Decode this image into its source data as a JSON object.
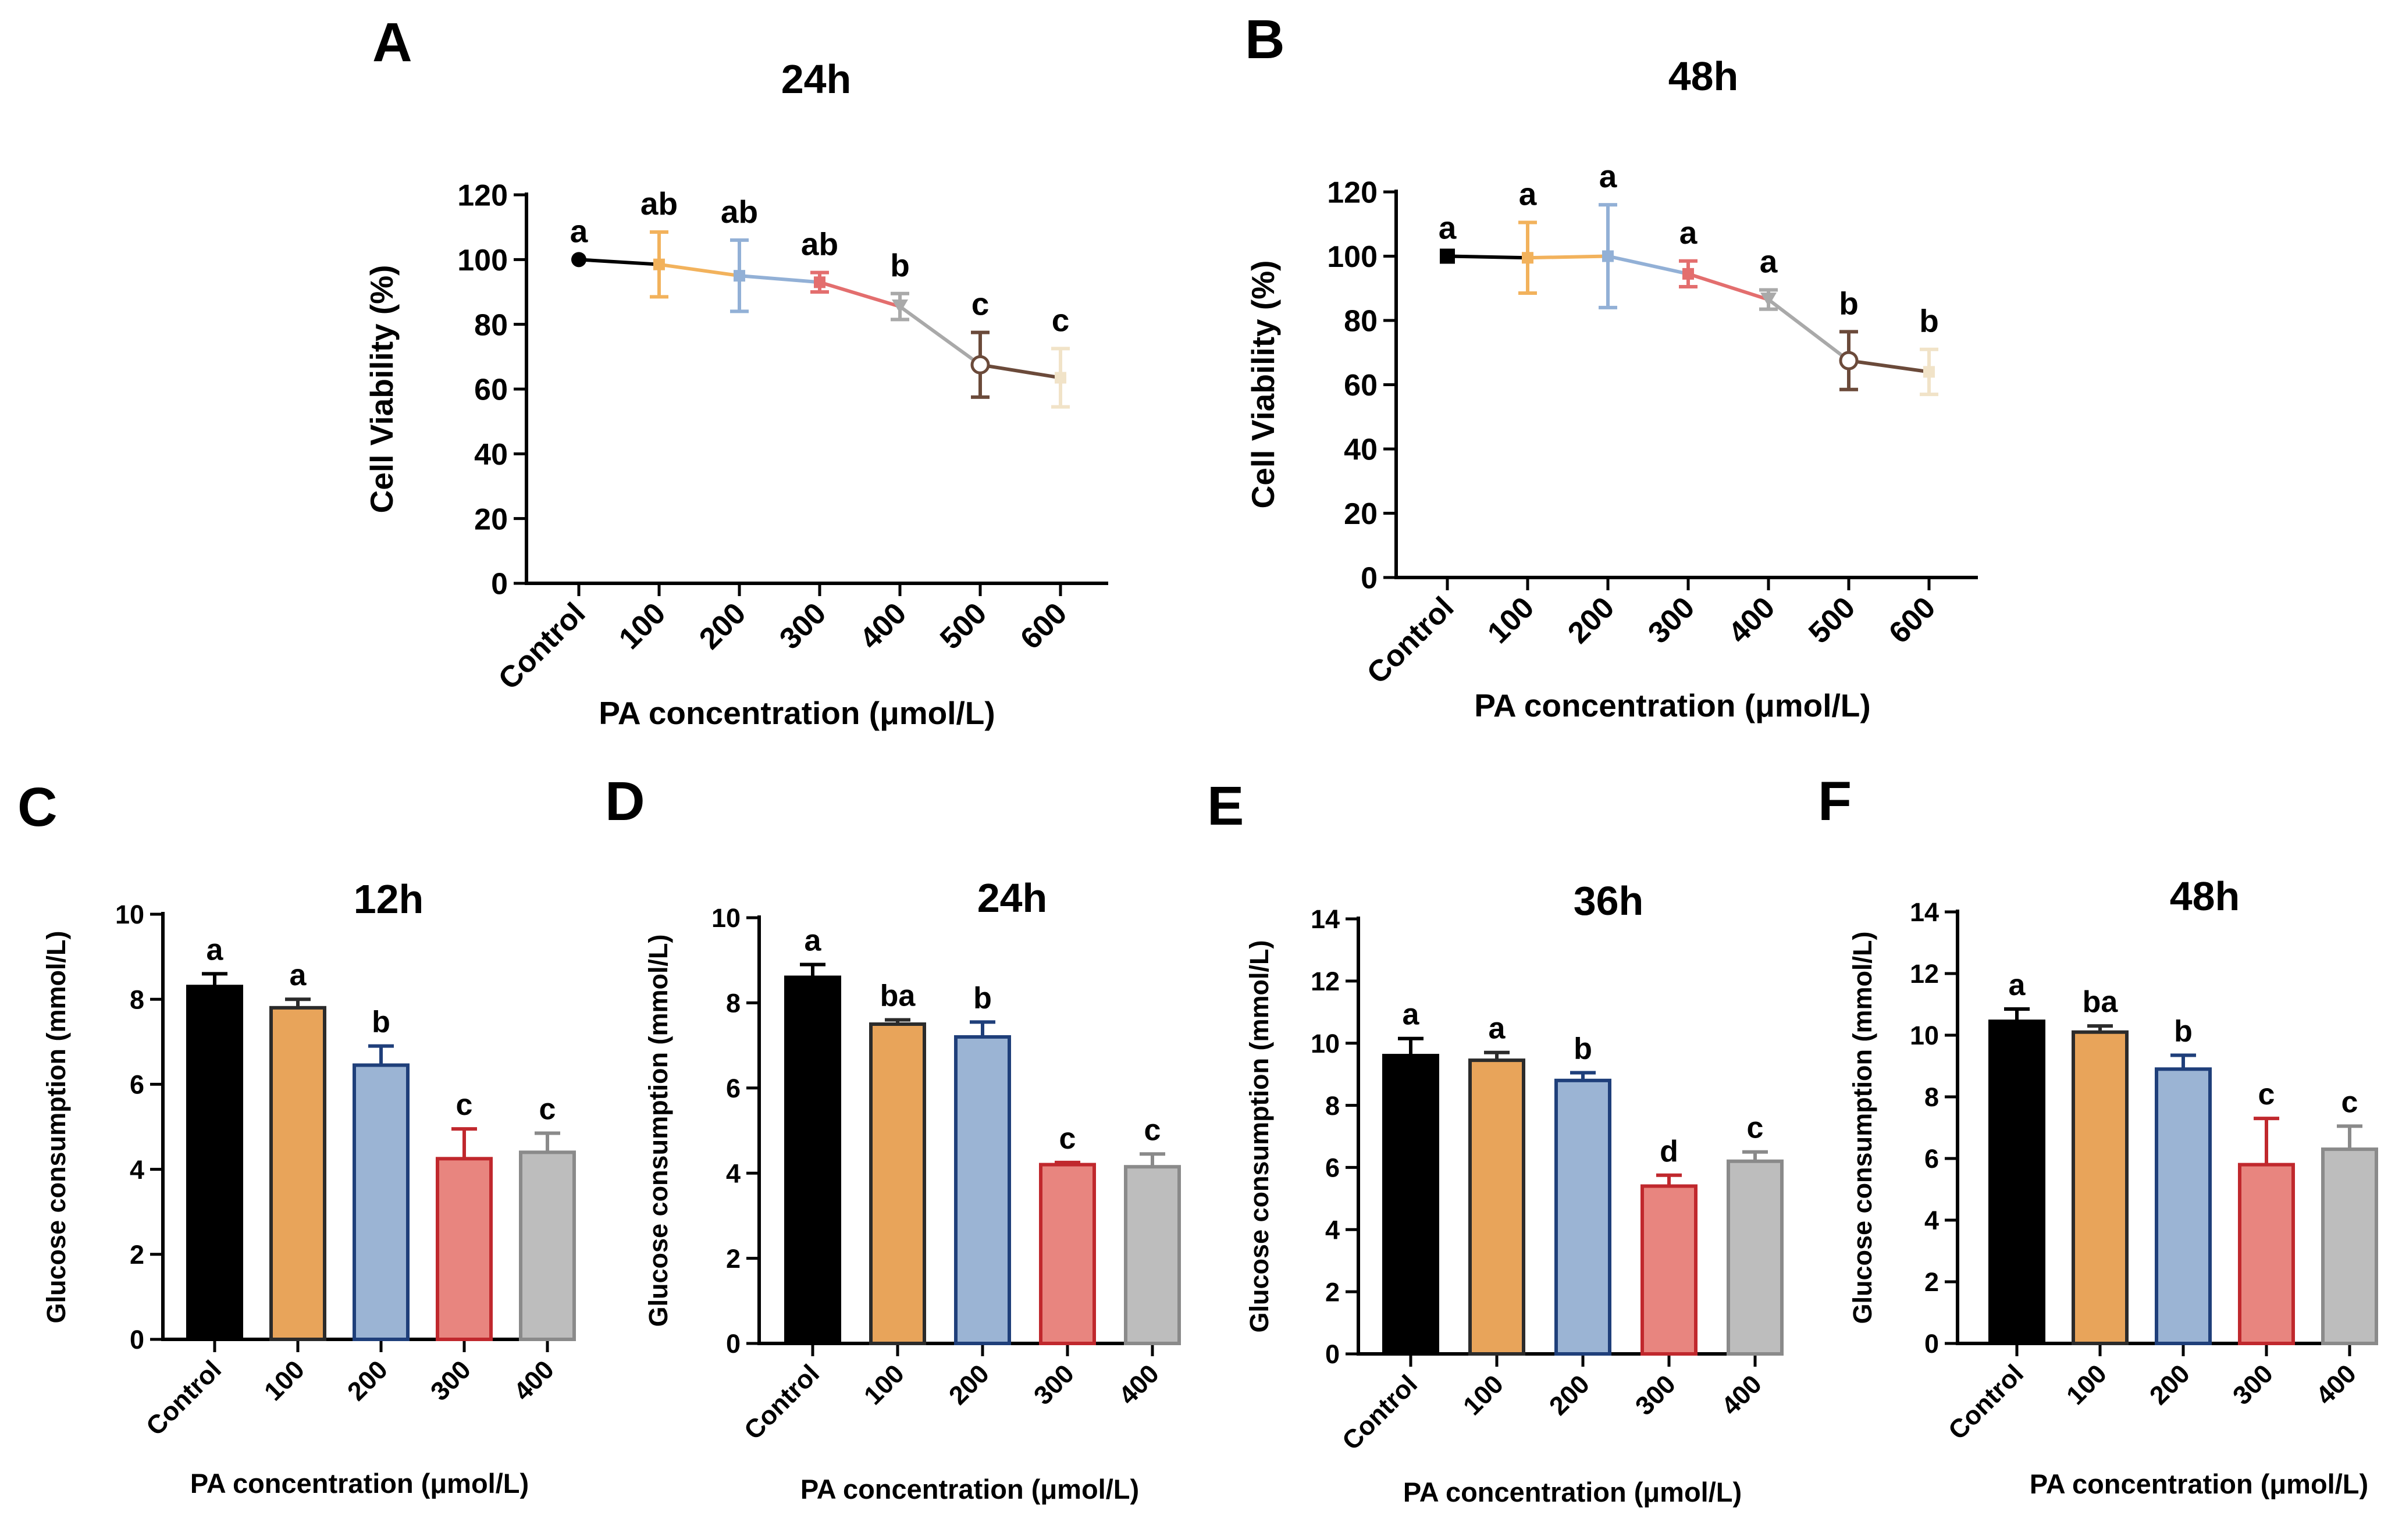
{
  "chart_data": [
    {
      "panel": "A",
      "type": "line",
      "title": "24h",
      "xlabel": "PA  concentration (μmol/L)",
      "ylabel": "Cell Viability (%)",
      "categories": [
        "Control",
        "100",
        "200",
        "300",
        "400",
        "500",
        "600"
      ],
      "values": [
        100,
        98.5,
        95,
        93,
        85.5,
        67.5,
        63.5
      ],
      "errors": [
        0,
        10,
        11,
        3,
        4,
        10,
        9
      ],
      "significance": [
        "a",
        "ab",
        "ab",
        "ab",
        "b",
        "c",
        "c"
      ],
      "colors": [
        "#000000",
        "#F2B25C",
        "#92B0D6",
        "#E36E6E",
        "#A9A9A9",
        "#6B4A3A",
        "#F1E3C8"
      ],
      "ylim": [
        0,
        120
      ],
      "yticks": [
        0,
        20,
        40,
        60,
        80,
        100,
        120
      ]
    },
    {
      "panel": "B",
      "type": "line",
      "title": "48h",
      "xlabel": "PA  concentration (μmol/L)",
      "ylabel": "Cell Viability (%)",
      "categories": [
        "Control",
        "100",
        "200",
        "300",
        "400",
        "500",
        "600"
      ],
      "values": [
        100,
        99.5,
        100,
        94.5,
        86.5,
        67.5,
        64
      ],
      "errors": [
        0,
        11,
        16,
        4,
        3,
        9,
        7
      ],
      "significance": [
        "a",
        "a",
        "a",
        "a",
        "a",
        "b",
        "b"
      ],
      "colors": [
        "#000000",
        "#F2B25C",
        "#92B0D6",
        "#E36E6E",
        "#A9A9A9",
        "#6B4A3A",
        "#F1E3C8"
      ],
      "ylim": [
        0,
        120
      ],
      "yticks": [
        0,
        20,
        40,
        60,
        80,
        100,
        120
      ]
    },
    {
      "panel": "C",
      "type": "bar",
      "title": "12h",
      "xlabel": "PA concentration (μmol/L)",
      "ylabel": "Glucose consumption (mmol/L)",
      "categories": [
        "Control",
        "100",
        "200",
        "300",
        "400"
      ],
      "values": [
        8.3,
        7.8,
        6.45,
        4.25,
        4.4
      ],
      "errors": [
        0.3,
        0.2,
        0.45,
        0.7,
        0.45
      ],
      "significance": [
        "a",
        "a",
        "b",
        "c",
        "c"
      ],
      "fills": [
        "#000000",
        "#E8A45A",
        "#9BB4D4",
        "#E8857F",
        "#BDBDBD"
      ],
      "strokes": [
        "#000000",
        "#2B2B2B",
        "#1F3F7A",
        "#C0282D",
        "#8A8A8A"
      ],
      "ylim": [
        0,
        10
      ],
      "yticks": [
        0,
        2,
        4,
        6,
        8,
        10
      ]
    },
    {
      "panel": "D",
      "type": "bar",
      "title": "24h",
      "xlabel": "PA concentration (μmol/L)",
      "ylabel": "Glucose consumption (mmol/L)",
      "categories": [
        "Control",
        "100",
        "200",
        "300",
        "400"
      ],
      "values": [
        8.6,
        7.5,
        7.2,
        4.2,
        4.15
      ],
      "errors": [
        0.3,
        0.1,
        0.35,
        0.05,
        0.3
      ],
      "significance": [
        "a",
        "ba",
        "b",
        "c",
        "c"
      ],
      "fills": [
        "#000000",
        "#E8A45A",
        "#9BB4D4",
        "#E8857F",
        "#BDBDBD"
      ],
      "strokes": [
        "#000000",
        "#2B2B2B",
        "#1F3F7A",
        "#C0282D",
        "#8A8A8A"
      ],
      "ylim": [
        0,
        10
      ],
      "yticks": [
        0,
        2,
        4,
        6,
        8,
        10
      ]
    },
    {
      "panel": "E",
      "type": "bar",
      "title": "36h",
      "xlabel": "PA concentration (μmol/L)",
      "ylabel": "Glucose consumption (mmol/L)",
      "categories": [
        "Control",
        "100",
        "200",
        "300",
        "400"
      ],
      "values": [
        9.6,
        9.45,
        8.8,
        5.4,
        6.2
      ],
      "errors": [
        0.55,
        0.25,
        0.25,
        0.35,
        0.3
      ],
      "significance": [
        "a",
        "a",
        "b",
        "d",
        "c"
      ],
      "fills": [
        "#000000",
        "#E8A45A",
        "#9BB4D4",
        "#E8857F",
        "#BDBDBD"
      ],
      "strokes": [
        "#000000",
        "#2B2B2B",
        "#1F3F7A",
        "#C0282D",
        "#8A8A8A"
      ],
      "ylim": [
        0,
        14
      ],
      "yticks": [
        0,
        2,
        4,
        6,
        8,
        10,
        12,
        14
      ]
    },
    {
      "panel": "F",
      "type": "bar",
      "title": "48h",
      "xlabel": "PA concentration (μmol/L)",
      "ylabel": "Glucose consumption (mmol/L)",
      "categories": [
        "Control",
        "100",
        "200",
        "300",
        "400"
      ],
      "values": [
        10.45,
        10.1,
        8.9,
        5.8,
        6.3
      ],
      "errors": [
        0.4,
        0.2,
        0.45,
        1.5,
        0.75
      ],
      "significance": [
        "a",
        "ba",
        "b",
        "c",
        "c"
      ],
      "fills": [
        "#000000",
        "#E8A45A",
        "#9BB4D4",
        "#E8857F",
        "#BDBDBD"
      ],
      "strokes": [
        "#000000",
        "#2B2B2B",
        "#1F3F7A",
        "#C0282D",
        "#8A8A8A"
      ],
      "ylim": [
        0,
        14
      ],
      "yticks": [
        0,
        2,
        4,
        6,
        8,
        10,
        12,
        14
      ]
    }
  ]
}
